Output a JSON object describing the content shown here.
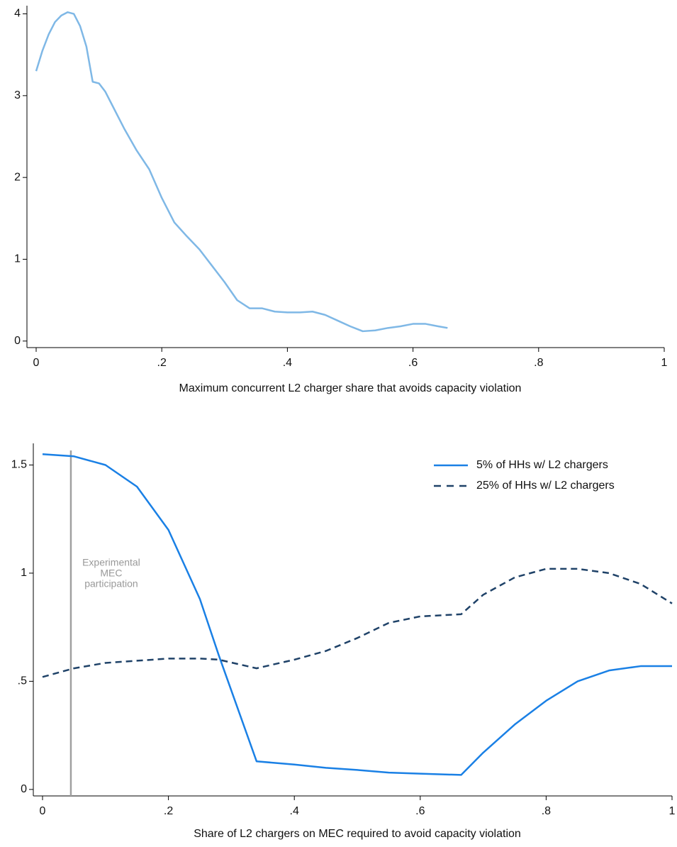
{
  "chart_data": [
    {
      "type": "line",
      "x_label": "Maximum concurrent L2 charger share that avoids capacity violation",
      "x": [
        0,
        0.01,
        0.02,
        0.03,
        0.04,
        0.05,
        0.06,
        0.07,
        0.08,
        0.09,
        0.1,
        0.11,
        0.12,
        0.14,
        0.16,
        0.18,
        0.2,
        0.22,
        0.24,
        0.26,
        0.28,
        0.3,
        0.32,
        0.34,
        0.36,
        0.38,
        0.4,
        0.42,
        0.44,
        0.46,
        0.48,
        0.5,
        0.52,
        0.54,
        0.56,
        0.58,
        0.6,
        0.62,
        0.64,
        0.655
      ],
      "values": [
        3.3,
        3.55,
        3.75,
        3.9,
        3.98,
        4.02,
        4.0,
        3.85,
        3.6,
        3.17,
        3.15,
        3.05,
        2.9,
        2.6,
        2.33,
        2.1,
        1.75,
        1.45,
        1.28,
        1.12,
        0.92,
        0.72,
        0.5,
        0.4,
        0.4,
        0.36,
        0.35,
        0.35,
        0.36,
        0.32,
        0.25,
        0.18,
        0.12,
        0.13,
        0.16,
        0.18,
        0.21,
        0.21,
        0.18,
        0.16
      ],
      "color": "#7fb8e6",
      "xlim": [
        0,
        1
      ],
      "xticks": [
        0,
        {
          "value": 0.2,
          "label": ".2"
        },
        {
          "value": 0.4,
          "label": ".4"
        },
        {
          "value": 0.6,
          "label": ".6"
        },
        {
          "value": 0.8,
          "label": ".8"
        },
        1
      ],
      "ylim": [
        -0.08,
        4.1
      ],
      "yticks": [
        0,
        1,
        2,
        3,
        4
      ]
    },
    {
      "type": "line",
      "x_label": "Share of L2 chargers on MEC required to avoid capacity violation",
      "x": [
        0,
        0.05,
        0.1,
        0.15,
        0.2,
        0.25,
        0.28,
        0.34,
        0.4,
        0.45,
        0.5,
        0.55,
        0.6,
        0.665,
        0.7,
        0.75,
        0.8,
        0.85,
        0.9,
        0.95,
        1
      ],
      "series": [
        {
          "name": "5% of HHs w/ L2 chargers",
          "color": "#1a80e5",
          "dash": false,
          "values": [
            1.55,
            1.54,
            1.5,
            1.4,
            1.2,
            0.88,
            0.62,
            0.13,
            0.115,
            0.1,
            0.09,
            0.078,
            0.073,
            0.067,
            0.17,
            0.3,
            0.41,
            0.5,
            0.55,
            0.57,
            0.57
          ]
        },
        {
          "name": "25% of HHs w/ L2 chargers",
          "color": "#1f4268",
          "dash": true,
          "values": [
            0.52,
            0.56,
            0.585,
            0.595,
            0.605,
            0.605,
            0.6,
            0.56,
            0.6,
            0.64,
            0.7,
            0.77,
            0.8,
            0.81,
            0.9,
            0.98,
            1.02,
            1.02,
            1.0,
            0.95,
            0.86
          ]
        }
      ],
      "vline": 0.045,
      "vline_color": "#a0a0a0",
      "annotation": [
        "Experimental",
        "MEC",
        "participation"
      ],
      "legend": "top-right",
      "xlim": [
        0,
        1
      ],
      "xticks": [
        0,
        {
          "value": 0.2,
          "label": ".2"
        },
        {
          "value": 0.4,
          "label": ".4"
        },
        {
          "value": 0.6,
          "label": ".6"
        },
        {
          "value": 0.8,
          "label": ".8"
        },
        1
      ],
      "ylim": [
        -0.03,
        1.6
      ],
      "yticks": [
        0,
        {
          "value": 0.5,
          "label": ".5"
        },
        1,
        1.5
      ]
    }
  ]
}
